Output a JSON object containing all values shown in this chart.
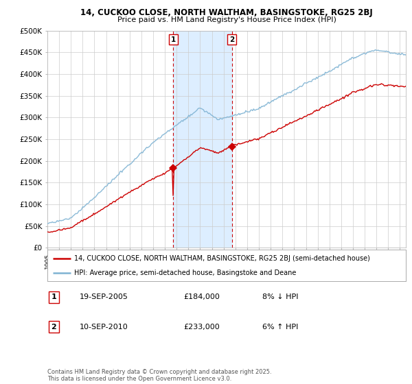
{
  "title1": "14, CUCKOO CLOSE, NORTH WALTHAM, BASINGSTOKE, RG25 2BJ",
  "title2": "Price paid vs. HM Land Registry's House Price Index (HPI)",
  "ylabel_ticks": [
    "£0",
    "£50K",
    "£100K",
    "£150K",
    "£200K",
    "£250K",
    "£300K",
    "£350K",
    "£400K",
    "£450K",
    "£500K"
  ],
  "ytick_values": [
    0,
    50000,
    100000,
    150000,
    200000,
    250000,
    300000,
    350000,
    400000,
    450000,
    500000
  ],
  "ylim": [
    0,
    500000
  ],
  "legend_line1": "14, CUCKOO CLOSE, NORTH WALTHAM, BASINGSTOKE, RG25 2BJ (semi-detached house)",
  "legend_line2": "HPI: Average price, semi-detached house, Basingstoke and Deane",
  "annotation1_label": "1",
  "annotation1_date": "19-SEP-2005",
  "annotation1_price": "£184,000",
  "annotation1_hpi": "8% ↓ HPI",
  "annotation2_label": "2",
  "annotation2_date": "10-SEP-2010",
  "annotation2_price": "£233,000",
  "annotation2_hpi": "6% ↑ HPI",
  "copyright_text": "Contains HM Land Registry data © Crown copyright and database right 2025.\nThis data is licensed under the Open Government Licence v3.0.",
  "price_color": "#cc0000",
  "hpi_color": "#7fb3d3",
  "vline_color": "#cc0000",
  "highlight_bg_color": "#ddeeff",
  "sale1_x": 2005.72,
  "sale1_y": 184000,
  "sale2_x": 2010.69,
  "sale2_y": 233000,
  "xmin": 1995,
  "xmax": 2025.5
}
